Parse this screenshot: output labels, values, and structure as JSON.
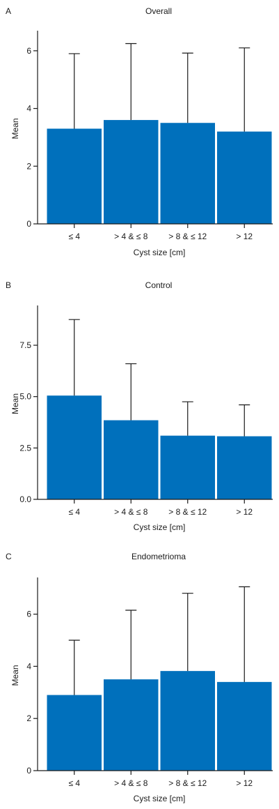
{
  "chart_data": [
    {
      "type": "bar",
      "panel": "A",
      "title": "Overall",
      "xlabel": "Cyst size [cm]",
      "ylabel": "Mean",
      "categories": [
        "≤ 4",
        "> 4 & ≤ 8",
        "> 8 & ≤ 12",
        "> 12"
      ],
      "values": [
        3.3,
        3.6,
        3.5,
        3.2
      ],
      "error_upper": [
        5.9,
        6.25,
        5.92,
        6.1
      ],
      "ylim": [
        0,
        6.6
      ],
      "yticks": [
        0,
        2,
        4,
        6
      ],
      "ytick_labels": [
        "0",
        "2",
        "4",
        "6"
      ],
      "bar_color": "#0070bc",
      "grid": false
    },
    {
      "type": "bar",
      "panel": "B",
      "title": "Control",
      "xlabel": "Cyst size [cm]",
      "ylabel": "Mean",
      "categories": [
        "≤ 4",
        "> 4 & ≤ 8",
        "> 8 & ≤ 12",
        "> 12"
      ],
      "values": [
        5.05,
        3.85,
        3.1,
        3.07
      ],
      "error_upper": [
        8.75,
        6.6,
        4.75,
        4.6
      ],
      "ylim": [
        0,
        9.3
      ],
      "yticks": [
        0,
        2.5,
        5.0,
        7.5
      ],
      "ytick_labels": [
        "0.0",
        "2.5",
        "5.0",
        "7.5"
      ],
      "bar_color": "#0070bc",
      "grid": false
    },
    {
      "type": "bar",
      "panel": "C",
      "title": "Endometrioma",
      "xlabel": "Cyst size [cm]",
      "ylabel": "Mean",
      "categories": [
        "≤ 4",
        "> 4 & ≤ 8",
        "> 8 & ≤ 12",
        "> 12"
      ],
      "values": [
        2.9,
        3.5,
        3.82,
        3.4
      ],
      "error_upper": [
        5.0,
        6.15,
        6.8,
        7.05
      ],
      "ylim": [
        0,
        7.3
      ],
      "yticks": [
        0,
        2,
        4,
        6
      ],
      "ytick_labels": [
        "0",
        "2",
        "4",
        "6"
      ],
      "bar_color": "#0070bc",
      "grid": false
    }
  ]
}
